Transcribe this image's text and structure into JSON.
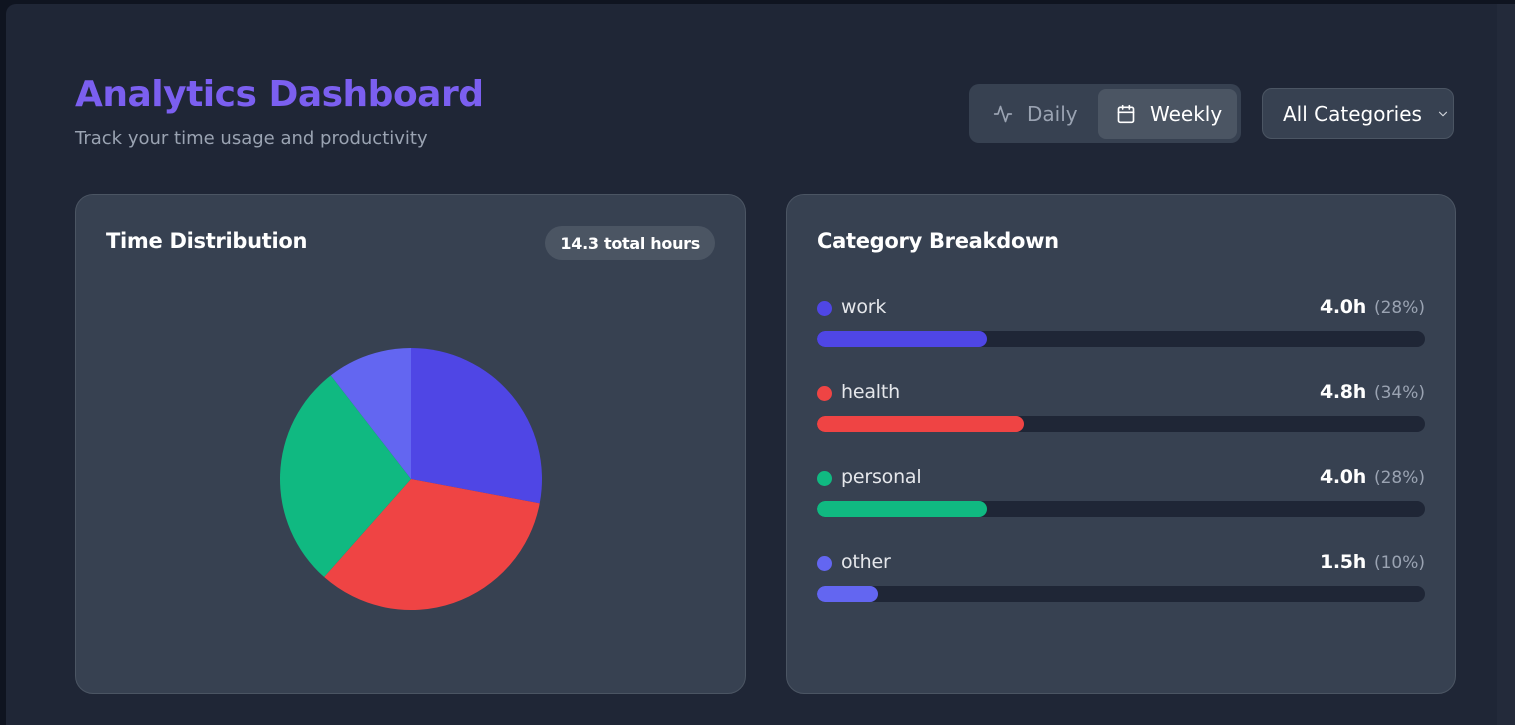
{
  "header": {
    "title": "Analytics Dashboard",
    "subtitle": "Track your time usage and productivity"
  },
  "view_toggle": {
    "options": [
      {
        "label": "Daily",
        "icon": "activity-icon",
        "selected": false
      },
      {
        "label": "Weekly",
        "icon": "calendar-icon",
        "selected": true
      }
    ]
  },
  "category_filter": {
    "selected": "All Categories",
    "icon": "chevron-down-icon"
  },
  "time_distribution": {
    "title": "Time Distribution",
    "total_badge": "14.3 total hours"
  },
  "category_breakdown": {
    "title": "Category Breakdown",
    "items": [
      {
        "name": "work",
        "hours": "4.0h",
        "percent": "(28%)",
        "fraction": 0.28,
        "color": "#4f46e5"
      },
      {
        "name": "health",
        "hours": "4.8h",
        "percent": "(34%)",
        "fraction": 0.34,
        "color": "#ef4444"
      },
      {
        "name": "personal",
        "hours": "4.0h",
        "percent": "(28%)",
        "fraction": 0.28,
        "color": "#10b981"
      },
      {
        "name": "other",
        "hours": "1.5h",
        "percent": "(10%)",
        "fraction": 0.1,
        "color": "#6366f1"
      }
    ]
  },
  "chart_data": {
    "type": "pie",
    "categories": [
      "work",
      "health",
      "personal",
      "other"
    ],
    "values": [
      4.0,
      4.8,
      4.0,
      1.5
    ],
    "colors": [
      "#4f46e5",
      "#ef4444",
      "#10b981",
      "#6366f1"
    ],
    "title": "Time Distribution"
  }
}
